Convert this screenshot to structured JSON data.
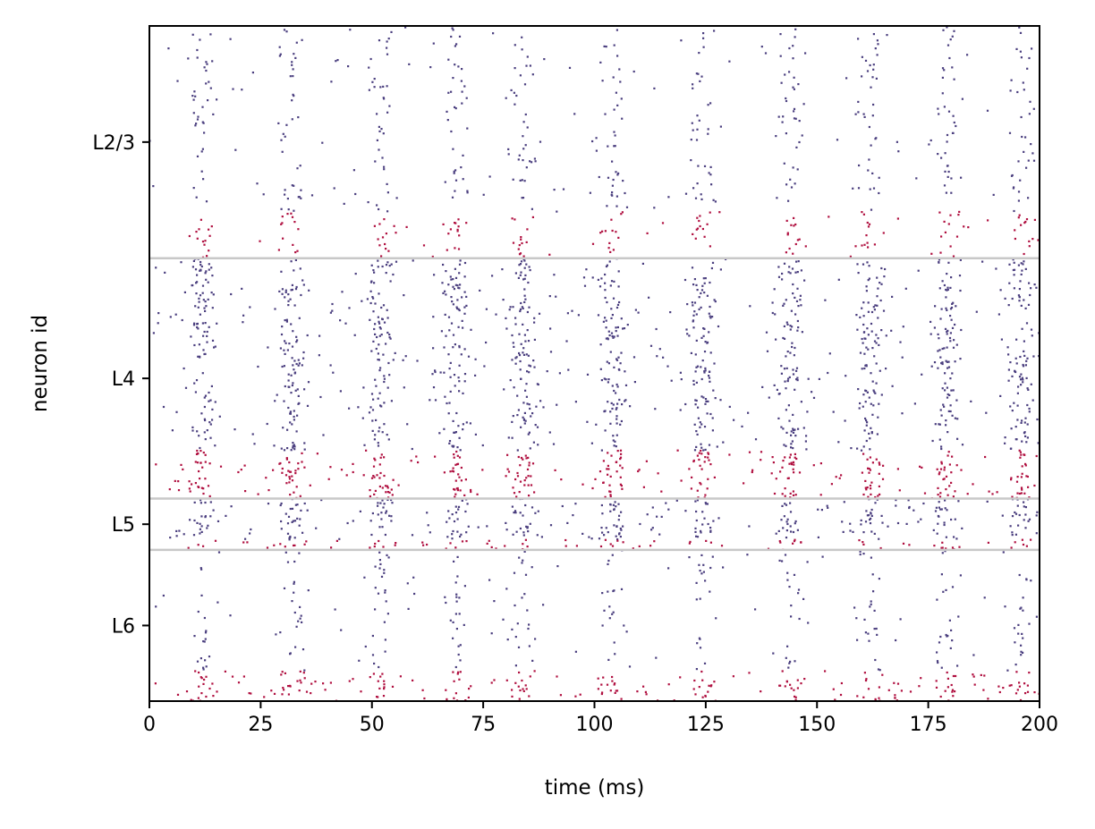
{
  "chart_data": {
    "type": "scatter",
    "subtype": "raster",
    "xlabel": "time (ms)",
    "ylabel": "neuron id",
    "xlim": [
      0,
      200
    ],
    "xticks": [
      0,
      25,
      50,
      75,
      100,
      125,
      150,
      175,
      200
    ],
    "xtick_labels": [
      "0",
      "25",
      "50",
      "75",
      "100",
      "125",
      "150",
      "175",
      "200"
    ],
    "grid": false,
    "legend": "none",
    "colors": {
      "excitatory": "#4b3f7f",
      "inhibitory": "#b01040",
      "layer_boundary": "#c8c8c8"
    },
    "layers": [
      {
        "name": "L2/3",
        "band_top": 1.0,
        "band_bottom": 0.656,
        "exc_fraction": 0.8,
        "exc_background_rate": 0.7,
        "exc_burst_rate": 3.0,
        "inh_background_rate": 0.6,
        "inh_burst_rate": 4.5
      },
      {
        "name": "L4",
        "band_top": 0.656,
        "band_bottom": 0.3,
        "exc_fraction": 0.8,
        "exc_background_rate": 2.2,
        "exc_burst_rate": 7.5,
        "inh_background_rate": 3.0,
        "inh_burst_rate": 9.0
      },
      {
        "name": "L5",
        "band_top": 0.3,
        "band_bottom": 0.224,
        "exc_fraction": 0.8,
        "exc_background_rate": 4.0,
        "exc_burst_rate": 8.0,
        "inh_background_rate": 6.0,
        "inh_burst_rate": 6.0
      },
      {
        "name": "L6",
        "band_top": 0.224,
        "band_bottom": 0.0,
        "exc_fraction": 0.8,
        "exc_background_rate": 0.8,
        "exc_burst_rate": 2.5,
        "inh_background_rate": 5.5,
        "inh_burst_rate": 6.0
      }
    ],
    "layer_boundaries": [
      0.656,
      0.3,
      0.224
    ],
    "population_burst_times": [
      12,
      32,
      52,
      69,
      84,
      104,
      124,
      144,
      162,
      179,
      196
    ],
    "burst_width_ms": 3.0
  }
}
